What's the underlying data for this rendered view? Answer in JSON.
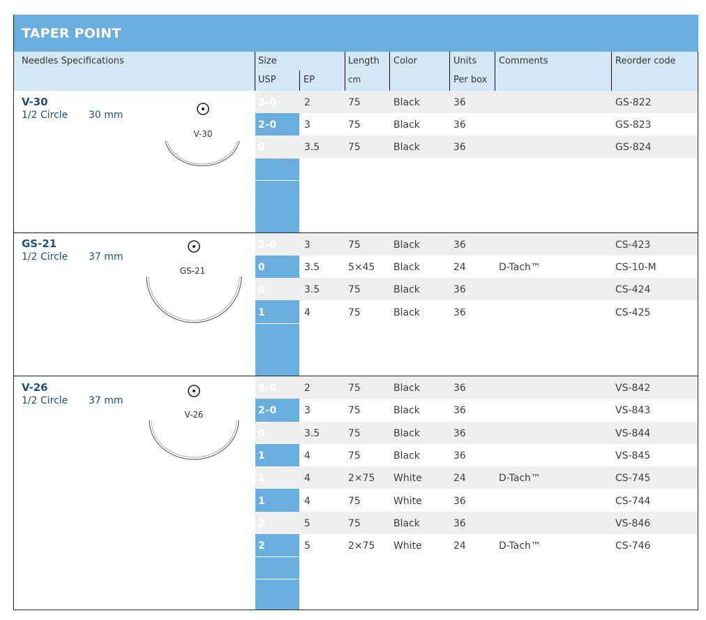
{
  "title": "TAPER POINT",
  "headers": {
    "needles_spec": "Needles Specifications",
    "size": "Size",
    "usp": "USP",
    "ep": "EP",
    "length": "Length",
    "length_unit": "cm",
    "color": "Color",
    "units": "Units",
    "units_sub": "Per box",
    "comments": "Comments",
    "reorder": "Reorder code"
  },
  "sections": [
    {
      "name": "V-30",
      "shape": "1/2 Circle",
      "length": "30 mm",
      "figure_label": "V-30",
      "rows": [
        {
          "usp": "3-0",
          "ep": "2",
          "length": "75",
          "color": "Black",
          "units": "36",
          "comments": "",
          "code": "GS-822"
        },
        {
          "usp": "2-0",
          "ep": "3",
          "length": "75",
          "color": "Black",
          "units": "36",
          "comments": "",
          "code": "GS-823"
        },
        {
          "usp": "0",
          "ep": "3.5",
          "length": "75",
          "color": "Black",
          "units": "36",
          "comments": "",
          "code": "GS-824"
        }
      ]
    },
    {
      "name": "GS-21",
      "shape": "1/2 Circle",
      "length": "37 mm",
      "figure_label": "GS-21",
      "rows": [
        {
          "usp": "2-0",
          "ep": "3",
          "length": "75",
          "color": "Black",
          "units": "36",
          "comments": "",
          "code": "CS-423"
        },
        {
          "usp": "0",
          "ep": "3.5",
          "length": "5×45",
          "color": "Black",
          "units": "24",
          "comments": "D-Tach™",
          "code": "CS-10-M"
        },
        {
          "usp": "0",
          "ep": "3.5",
          "length": "75",
          "color": "Black",
          "units": "36",
          "comments": "",
          "code": "CS-424"
        },
        {
          "usp": "1",
          "ep": "4",
          "length": "75",
          "color": "Black",
          "units": "36",
          "comments": "",
          "code": "CS-425"
        }
      ]
    },
    {
      "name": "V-26",
      "shape": "1/2 Circle",
      "length": "37 mm",
      "figure_label": "V-26",
      "rows": [
        {
          "usp": "3-0",
          "ep": "2",
          "length": "75",
          "color": "Black",
          "units": "36",
          "comments": "",
          "code": "VS-842"
        },
        {
          "usp": "2-0",
          "ep": "3",
          "length": "75",
          "color": "Black",
          "units": "36",
          "comments": "",
          "code": "VS-843"
        },
        {
          "usp": "0",
          "ep": "3.5",
          "length": "75",
          "color": "Black",
          "units": "36",
          "comments": "",
          "code": "VS-844"
        },
        {
          "usp": "1",
          "ep": "4",
          "length": "75",
          "color": "Black",
          "units": "36",
          "comments": "",
          "code": "VS-845"
        },
        {
          "usp": "1",
          "ep": "4",
          "length": "2×75",
          "color": "White",
          "units": "24",
          "comments": "D-Tach™",
          "code": "CS-745"
        },
        {
          "usp": "1",
          "ep": "4",
          "length": "75",
          "color": "White",
          "units": "36",
          "comments": "",
          "code": "CS-744"
        },
        {
          "usp": "2",
          "ep": "5",
          "length": "75",
          "color": "Black",
          "units": "36",
          "comments": "",
          "code": "VS-846"
        },
        {
          "usp": "2",
          "ep": "5",
          "length": "2×75",
          "color": "White",
          "units": "24",
          "comments": "D-Tach™",
          "code": "CS-746"
        }
      ]
    }
  ]
}
